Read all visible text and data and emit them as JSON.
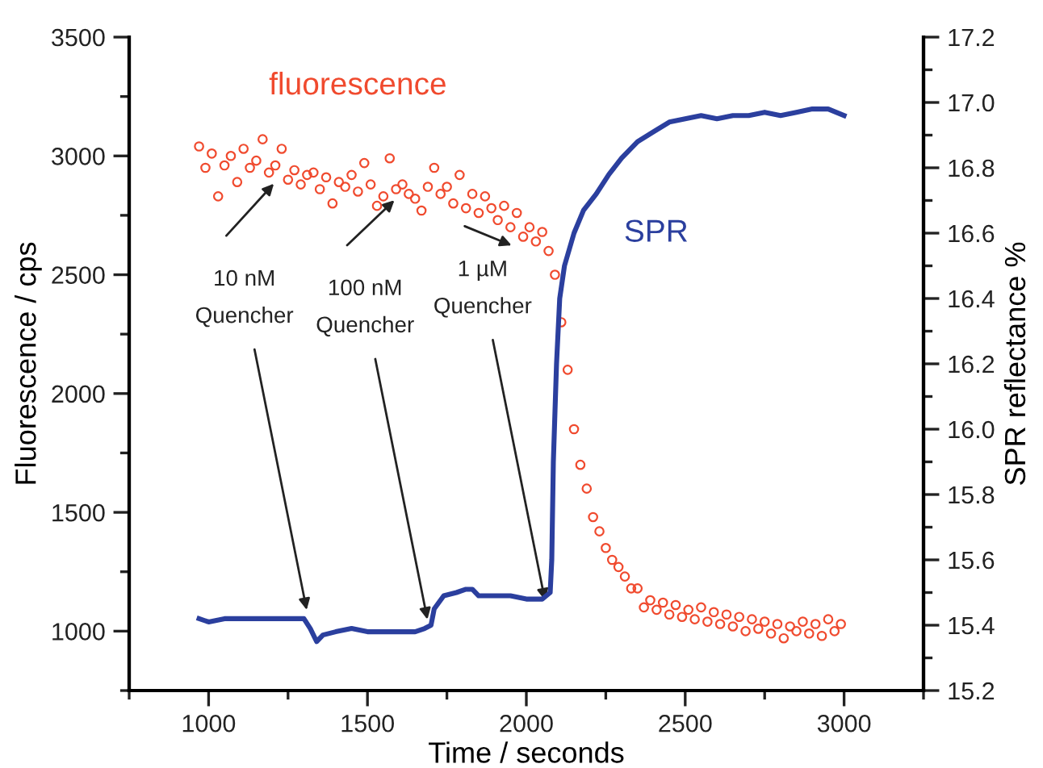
{
  "chart_data": {
    "type": "scatter",
    "xlabel": "Time / seconds",
    "ylabel": "Fluorescence / cps",
    "y2label": "SPR reflectance %",
    "xlim": [
      750,
      3250
    ],
    "xticks": [
      {
        "value": 750,
        "label": null
      },
      1000,
      {
        "value": 1250,
        "label": null
      },
      1500,
      {
        "value": 1750,
        "label": null
      },
      2000,
      {
        "value": 2250,
        "label": null
      },
      2500,
      {
        "value": 2750,
        "label": null
      },
      3000,
      {
        "value": 3250,
        "label": null
      }
    ],
    "ylim": [
      750,
      3500
    ],
    "yticks": [
      {
        "value": 750,
        "label": null
      },
      1000,
      {
        "value": 1250,
        "label": null
      },
      1500,
      {
        "value": 1750,
        "label": null
      },
      2000,
      {
        "value": 2250,
        "label": null
      },
      2500,
      {
        "value": 2750,
        "label": null
      },
      3000,
      {
        "value": 3250,
        "label": null
      },
      3500
    ],
    "y2lim": [
      15.2,
      17.2
    ],
    "y2ticks": [
      {
        "value": 15.2,
        "label": "15.2"
      },
      {
        "value": 15.3,
        "label": null
      },
      {
        "value": 15.4,
        "label": "15.4"
      },
      {
        "value": 15.5,
        "label": null
      },
      {
        "value": 15.6,
        "label": "15.6"
      },
      {
        "value": 15.7,
        "label": null
      },
      {
        "value": 15.8,
        "label": "15.8"
      },
      {
        "value": 15.9,
        "label": null
      },
      {
        "value": 16.0,
        "label": "16.0"
      },
      {
        "value": 16.1,
        "label": null
      },
      {
        "value": 16.2,
        "label": "16.2"
      },
      {
        "value": 16.3,
        "label": null
      },
      {
        "value": 16.4,
        "label": "16.4"
      },
      {
        "value": 16.5,
        "label": null
      },
      {
        "value": 16.6,
        "label": "16.6"
      },
      {
        "value": 16.7,
        "label": null
      },
      {
        "value": 16.8,
        "label": "16.8"
      },
      {
        "value": 16.9,
        "label": null
      },
      {
        "value": 17.0,
        "label": "17.0"
      },
      {
        "value": 17.1,
        "label": null
      },
      {
        "value": 17.2,
        "label": "17.2"
      }
    ],
    "grid": false,
    "legend": false,
    "series": [
      {
        "name": "fluorescence",
        "marker": "circle",
        "color": "#f04a2e",
        "x": [
          970,
          990,
          1010,
          1030,
          1050,
          1070,
          1090,
          1110,
          1130,
          1150,
          1170,
          1190,
          1210,
          1230,
          1250,
          1270,
          1290,
          1310,
          1330,
          1350,
          1370,
          1390,
          1410,
          1430,
          1450,
          1470,
          1490,
          1510,
          1530,
          1550,
          1570,
          1590,
          1610,
          1630,
          1650,
          1670,
          1690,
          1710,
          1730,
          1750,
          1770,
          1790,
          1810,
          1830,
          1850,
          1870,
          1890,
          1910,
          1930,
          1950,
          1970,
          1990,
          2010,
          2030,
          2050,
          2070,
          2090,
          2110,
          2130,
          2150,
          2170,
          2190,
          2210,
          2230,
          2250,
          2270,
          2290,
          2310,
          2330,
          2350,
          2370,
          2390,
          2410,
          2430,
          2450,
          2470,
          2490,
          2510,
          2530,
          2550,
          2570,
          2590,
          2610,
          2630,
          2650,
          2670,
          2690,
          2710,
          2730,
          2750,
          2770,
          2790,
          2810,
          2830,
          2850,
          2870,
          2890,
          2910,
          2930,
          2950,
          2970,
          2990
        ],
        "values": [
          3040,
          2950,
          3010,
          2830,
          2960,
          3000,
          2890,
          3030,
          2950,
          2980,
          3070,
          2930,
          2960,
          3030,
          2900,
          2940,
          2880,
          2920,
          2930,
          2860,
          2910,
          2800,
          2890,
          2870,
          2920,
          2850,
          2970,
          2880,
          2790,
          2830,
          2990,
          2860,
          2880,
          2840,
          2820,
          2770,
          2870,
          2950,
          2840,
          2870,
          2800,
          2920,
          2780,
          2840,
          2760,
          2830,
          2780,
          2730,
          2790,
          2700,
          2760,
          2660,
          2700,
          2640,
          2680,
          2600,
          2500,
          2300,
          2100,
          1850,
          1700,
          1600,
          1480,
          1420,
          1350,
          1300,
          1270,
          1230,
          1180,
          1180,
          1100,
          1130,
          1090,
          1120,
          1070,
          1110,
          1060,
          1090,
          1050,
          1100,
          1040,
          1080,
          1030,
          1070,
          1020,
          1060,
          1000,
          1050,
          1010,
          1040,
          990,
          1030,
          970,
          1020,
          1000,
          1040,
          990,
          1030,
          980,
          1050,
          1000,
          1030
        ]
      },
      {
        "name": "SPR",
        "type": "line",
        "axis": "y2",
        "marker": "none",
        "line_style": "solid",
        "color": "#2b3f9e",
        "x": [
          970,
          1000,
          1050,
          1100,
          1200,
          1250,
          1300,
          1320,
          1340,
          1360,
          1400,
          1450,
          1500,
          1550,
          1600,
          1650,
          1680,
          1700,
          1710,
          1740,
          1780,
          1810,
          1830,
          1850,
          1900,
          1950,
          2000,
          2050,
          2075,
          2080,
          2085,
          2095,
          2105,
          2120,
          2150,
          2180,
          2220,
          2260,
          2300,
          2350,
          2400,
          2450,
          2500,
          2550,
          2600,
          2650,
          2700,
          2750,
          2800,
          2850,
          2900,
          2950,
          3000
        ],
        "values": [
          15.42,
          15.41,
          15.42,
          15.42,
          15.42,
          15.42,
          15.42,
          15.39,
          15.35,
          15.37,
          15.38,
          15.39,
          15.38,
          15.38,
          15.38,
          15.38,
          15.39,
          15.4,
          15.45,
          15.49,
          15.5,
          15.51,
          15.51,
          15.49,
          15.49,
          15.49,
          15.48,
          15.48,
          15.5,
          15.6,
          15.9,
          16.2,
          16.4,
          16.5,
          16.6,
          16.67,
          16.72,
          16.78,
          16.83,
          16.88,
          16.91,
          16.94,
          16.95,
          16.96,
          16.95,
          16.96,
          16.96,
          16.97,
          16.96,
          16.97,
          16.98,
          16.98,
          16.96
        ]
      }
    ],
    "annotations": [
      {
        "text": "10 nM\nQuencher",
        "x": 1310,
        "y": 1080
      },
      {
        "text": "100 nM\nQuencher",
        "x": 1690,
        "y": 1040
      },
      {
        "text": "1 µM\nQuencher",
        "x": 2060,
        "y": 1120
      }
    ]
  }
}
